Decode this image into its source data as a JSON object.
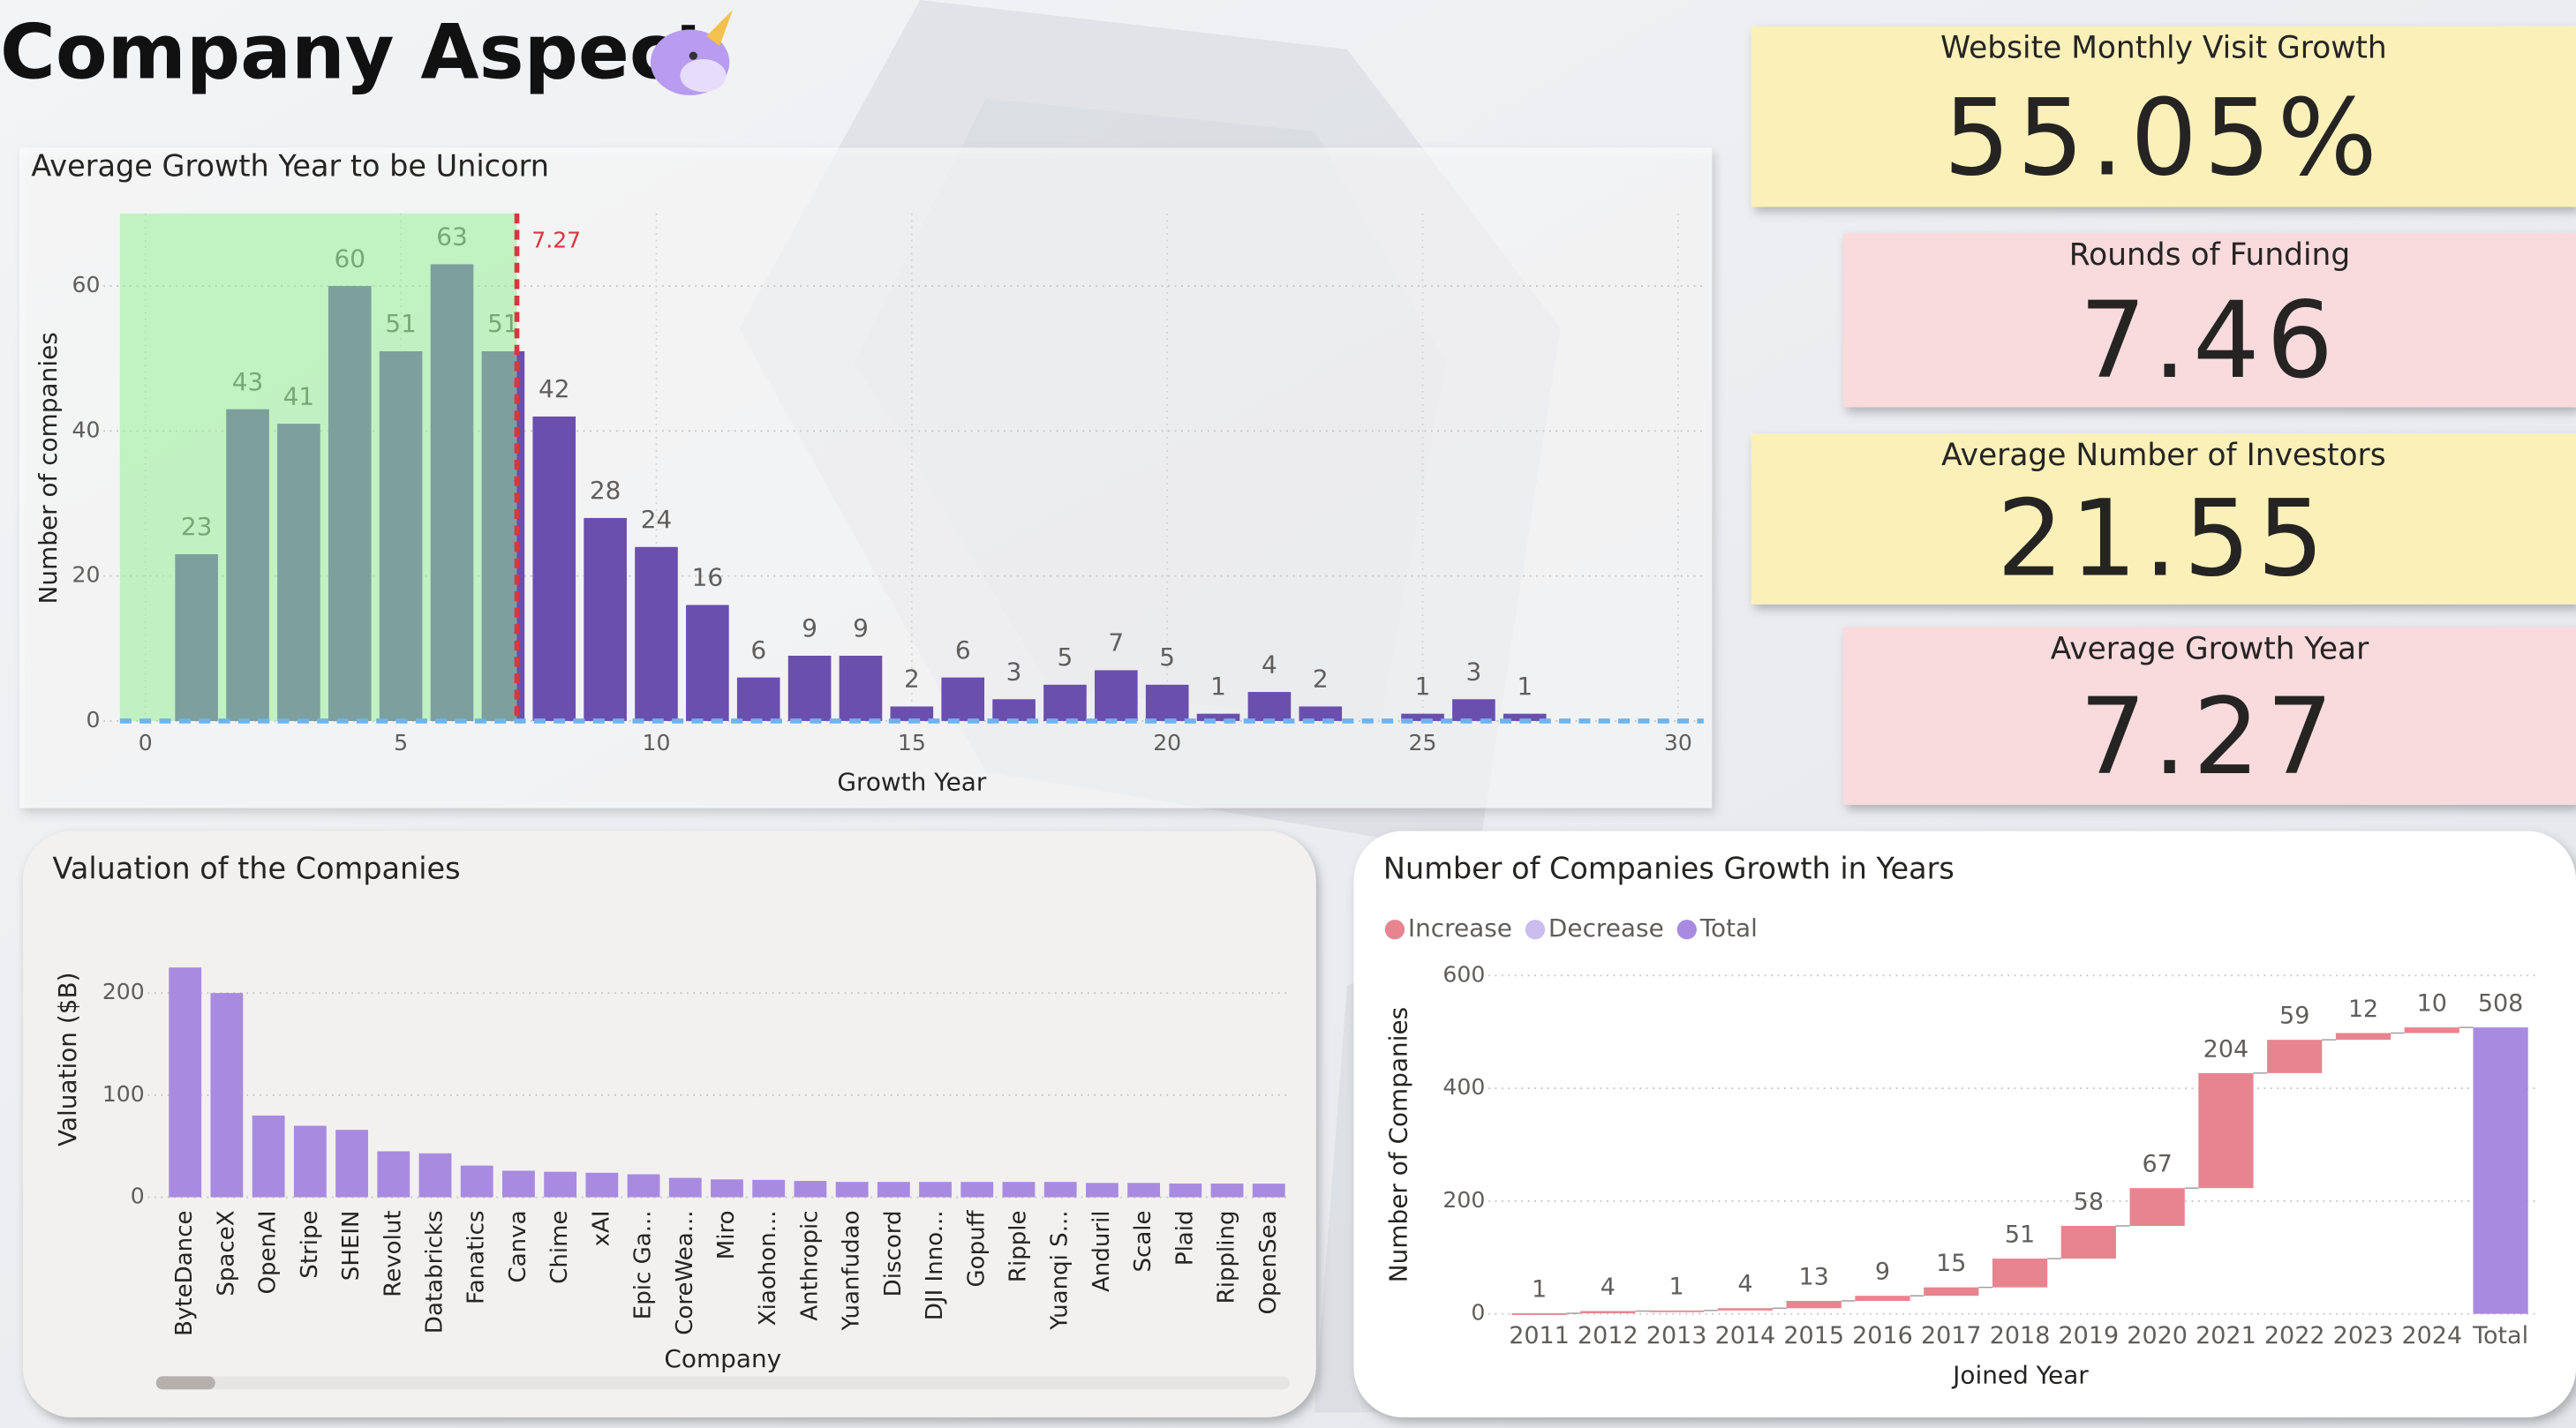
{
  "header": {
    "title": "Company Aspect"
  },
  "kpis": [
    {
      "label": "Website Monthly Visit Growth",
      "value": "55.05%"
    },
    {
      "label": "Rounds of Funding",
      "value": "7.46"
    },
    {
      "label": "Average Number of Investors",
      "value": "21.55"
    },
    {
      "label": "Average Growth Year",
      "value": "7.27"
    }
  ],
  "chart_data": [
    {
      "type": "bar",
      "title": "Average Growth Year to be Unicorn",
      "x": [
        1,
        2,
        3,
        4,
        5,
        6,
        7,
        8,
        9,
        10,
        11,
        12,
        13,
        14,
        15,
        16,
        17,
        18,
        19,
        20,
        21,
        22,
        23,
        25,
        26,
        27
      ],
      "values": [
        23,
        43,
        41,
        60,
        51,
        63,
        51,
        42,
        28,
        24,
        16,
        6,
        9,
        9,
        2,
        6,
        3,
        5,
        7,
        5,
        1,
        4,
        2,
        1,
        3,
        1
      ],
      "color": "#6a4fad",
      "xlim": [
        -0.5,
        30.5
      ],
      "xticks": [
        0,
        5,
        10,
        15,
        20,
        25,
        30
      ],
      "ylim": [
        0,
        70
      ],
      "yticks": [
        0,
        20,
        40,
        60
      ],
      "x_label": "Growth Year",
      "y_label": "Number of companies",
      "reference_line": {
        "value": 7.27,
        "color": "#d9363e"
      },
      "grid": true
    },
    {
      "type": "bar",
      "title": "Valuation of the Companies",
      "categories": [
        "ByteDance",
        "SpaceX",
        "OpenAI",
        "Stripe",
        "SHEIN",
        "Revolut",
        "Databricks",
        "Fanatics",
        "Canva",
        "Chime",
        "xAI",
        "Epic Ga...",
        "CoreWea...",
        "Miro",
        "Xiaohon...",
        "Anthropic",
        "Yuanfudao",
        "Discord",
        "DJI Inno...",
        "Gopuff",
        "Ripple",
        "Yuanqi S...",
        "Anduril",
        "Scale",
        "Plaid",
        "Rippling",
        "OpenSea"
      ],
      "values": [
        225,
        200,
        80,
        70,
        66,
        45,
        43,
        31,
        26,
        25,
        24,
        22.5,
        19,
        17.5,
        17,
        16,
        15,
        15,
        15,
        15,
        15,
        15,
        14,
        14,
        13.4,
        13.4,
        13.3
      ],
      "color": "#a88be0",
      "ylim": [
        0,
        230
      ],
      "yticks": [
        0,
        100,
        200
      ],
      "x_label": "Company",
      "y_label": "Valuation ($B)",
      "grid": true
    },
    {
      "type": "waterfall",
      "title": "Number of Companies Growth in Years",
      "categories": [
        "2011",
        "2012",
        "2013",
        "2014",
        "2015",
        "2016",
        "2017",
        "2018",
        "2019",
        "2020",
        "2021",
        "2022",
        "2023",
        "2024"
      ],
      "values": [
        1,
        4,
        1,
        4,
        13,
        9,
        15,
        51,
        58,
        67,
        204,
        59,
        12,
        10
      ],
      "total": {
        "label": "Total",
        "value": 508
      },
      "legend": [
        {
          "name": "Increase",
          "color": "#e8848f"
        },
        {
          "name": "Decrease",
          "color": "#cbbdf0"
        },
        {
          "name": "Total",
          "color": "#a88be0"
        }
      ],
      "ylim": [
        0,
        600
      ],
      "yticks": [
        0,
        200,
        400,
        600
      ],
      "x_label": "Joined Year",
      "y_label": "Number of Companies",
      "grid": true
    }
  ]
}
